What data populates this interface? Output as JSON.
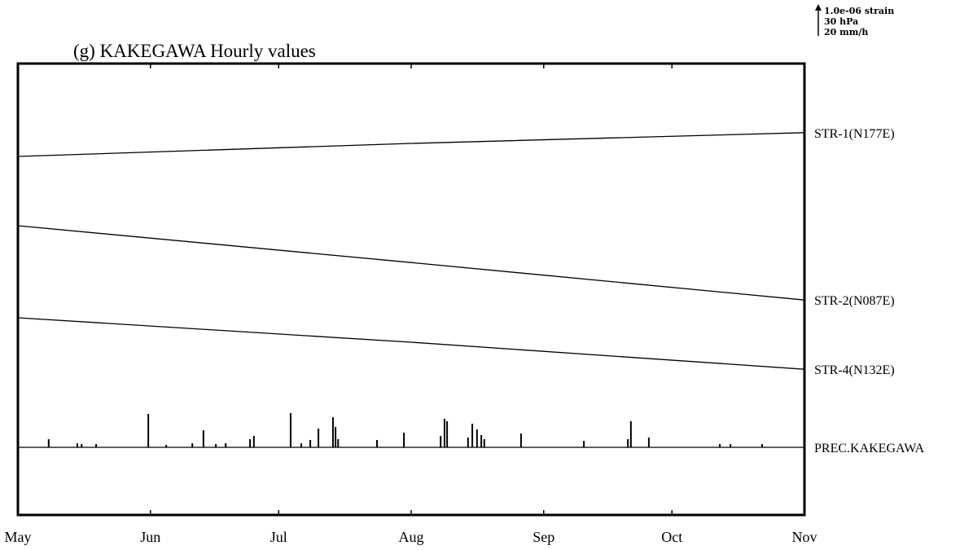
{
  "chart_data": {
    "type": "line",
    "title": "(g) KAKEGAWA Hourly values",
    "scale_bar": [
      "1.0e-06 strain",
      "30 hPa",
      "20 mm/h"
    ],
    "categories": [
      "May",
      "Jun",
      "Jul",
      "Aug",
      "Sep",
      "Oct",
      "Nov"
    ],
    "category_x": [
      0,
      31,
      61,
      92,
      123,
      153,
      184
    ],
    "xlim": [
      0,
      184
    ],
    "series": [
      {
        "name": "STR-1(N177E)",
        "type": "line",
        "color": "#000000",
        "x": [
          0,
          92,
          184
        ],
        "values": [
          0,
          0.4,
          0.73
        ]
      },
      {
        "name": "STR-2(N087E)",
        "type": "line",
        "color": "#000000",
        "x": [
          0,
          92,
          184
        ],
        "values": [
          0,
          -1.13,
          -2.28
        ]
      },
      {
        "name": "STR-4(N132E)",
        "type": "line",
        "color": "#000000",
        "x": [
          0,
          92,
          184
        ],
        "values": [
          0,
          -0.75,
          -1.58
        ]
      },
      {
        "name": "PREC.KAKEGAWA",
        "type": "bar",
        "color": "#000000",
        "x": [
          7.2,
          13.9,
          14.9,
          18.3,
          30.5,
          34.7,
          40.8,
          43.4,
          46.3,
          48.6,
          54.3,
          55.2,
          63.8,
          66.3,
          68.4,
          70.3,
          73.7,
          74.3,
          74.9,
          84.0,
          90.3,
          98.9,
          99.8,
          100.4,
          105.3,
          106.3,
          107.4,
          108.4,
          109.1,
          117.7,
          132.4,
          142.7,
          143.4,
          147.6,
          164.2,
          166.7,
          174.1
        ],
        "values": [
          5,
          2.5,
          2,
          2,
          20.5,
          1.5,
          2.5,
          10.5,
          2,
          2.5,
          5,
          7,
          21,
          2.5,
          4.5,
          11.5,
          18.5,
          12.5,
          5,
          4.5,
          9,
          7,
          17.5,
          16,
          6,
          14.5,
          11,
          7.5,
          5,
          8.5,
          4,
          5,
          16,
          6,
          2,
          2,
          2
        ]
      }
    ]
  }
}
